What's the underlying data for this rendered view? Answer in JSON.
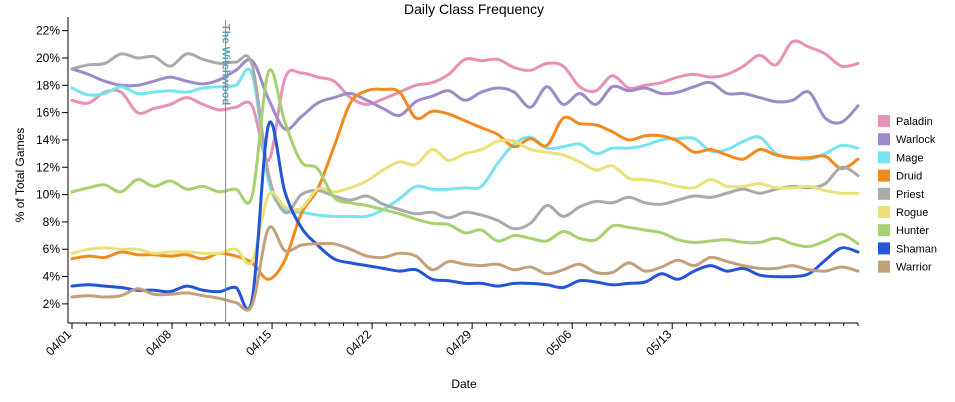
{
  "chart_data": {
    "type": "line",
    "title": "Daily Class Frequency",
    "xlabel": "Date",
    "ylabel": "% of Total Games",
    "ylim": [
      0.6,
      23.0
    ],
    "yticks": [
      2,
      4,
      6,
      8,
      10,
      12,
      14,
      16,
      18,
      20,
      22
    ],
    "ytick_labels": [
      "2%",
      "4%",
      "6%",
      "8%",
      "10%",
      "12%",
      "14%",
      "16%",
      "18%",
      "20%",
      "22%"
    ],
    "x_range": [
      0,
      55
    ],
    "xticks": [
      0,
      7,
      14,
      21,
      28,
      35,
      42
    ],
    "xtick_labels": [
      "04/01",
      "04/08",
      "04/15",
      "04/22",
      "04/29",
      "05/06",
      "05/13"
    ],
    "legend_position": "right",
    "annotation": {
      "label": "The Witchwood",
      "x": 10.75
    },
    "series": [
      {
        "name": "Paladin",
        "color": "#e990b8",
        "values": [
          16.9,
          16.7,
          17.5,
          17.5,
          16.0,
          16.3,
          16.6,
          17.1,
          16.6,
          16.2,
          16.4,
          16.5,
          12.5,
          18.5,
          18.9,
          18.6,
          18.3,
          17.1,
          16.6,
          17.0,
          17.5,
          18.0,
          18.2,
          18.8,
          19.9,
          19.8,
          19.9,
          19.3,
          19.1,
          19.6,
          19.4,
          17.9,
          17.6,
          18.7,
          17.8,
          18.0,
          18.2,
          18.6,
          18.8,
          18.6,
          18.8,
          19.4,
          20.2,
          19.5,
          21.2,
          20.8,
          20.3,
          19.4,
          19.6
        ]
      },
      {
        "name": "Warlock",
        "color": "#9d8bc8",
        "values": [
          19.2,
          18.8,
          18.3,
          18.0,
          18.0,
          18.3,
          18.6,
          18.3,
          18.1,
          18.4,
          19.1,
          19.8,
          17.0,
          14.8,
          15.7,
          16.7,
          17.1,
          17.4,
          16.9,
          16.3,
          15.8,
          16.8,
          17.2,
          17.6,
          16.9,
          17.5,
          17.8,
          17.5,
          16.4,
          17.9,
          16.6,
          17.4,
          16.6,
          17.9,
          17.6,
          17.8,
          17.4,
          17.5,
          17.9,
          18.2,
          17.4,
          17.4,
          17.1,
          16.8,
          16.9,
          17.5,
          15.6,
          15.3,
          16.5
        ]
      },
      {
        "name": "Mage",
        "color": "#76e4f0",
        "values": [
          17.8,
          17.3,
          17.4,
          17.9,
          17.4,
          17.5,
          17.6,
          17.5,
          17.8,
          17.9,
          18.0,
          18.8,
          11.0,
          8.9,
          8.7,
          8.5,
          8.4,
          8.4,
          8.4,
          8.9,
          9.7,
          10.6,
          10.4,
          10.4,
          10.5,
          10.6,
          12.3,
          13.7,
          14.2,
          13.4,
          13.5,
          13.7,
          13.0,
          13.4,
          13.4,
          13.6,
          14.0,
          14.1,
          14.1,
          13.2,
          13.3,
          13.9,
          14.2,
          13.0,
          12.7,
          12.6,
          13.0,
          13.6,
          13.4
        ]
      },
      {
        "name": "Druid",
        "color": "#f28a1f",
        "values": [
          5.3,
          5.5,
          5.4,
          5.8,
          5.6,
          5.6,
          5.5,
          5.6,
          5.3,
          5.7,
          5.5,
          5.0,
          3.8,
          5.2,
          8.6,
          10.4,
          13.5,
          16.7,
          17.6,
          17.7,
          17.5,
          15.6,
          16.1,
          15.9,
          15.4,
          14.9,
          14.4,
          13.5,
          14.1,
          13.6,
          15.6,
          15.2,
          15.1,
          14.6,
          14.0,
          14.3,
          14.3,
          13.9,
          13.1,
          13.3,
          12.9,
          12.6,
          13.3,
          12.9,
          12.7,
          12.7,
          12.8,
          11.9,
          12.6
        ]
      },
      {
        "name": "Priest",
        "color": "#aaaaaa",
        "values": [
          19.2,
          19.5,
          19.6,
          20.3,
          20.0,
          20.1,
          19.4,
          20.3,
          19.9,
          19.6,
          19.7,
          19.5,
          11.5,
          8.7,
          10.0,
          10.3,
          9.9,
          9.6,
          9.9,
          9.3,
          8.9,
          8.6,
          8.7,
          8.3,
          8.7,
          8.5,
          8.1,
          7.5,
          7.9,
          9.2,
          8.4,
          9.1,
          9.5,
          9.4,
          9.8,
          9.4,
          9.3,
          9.6,
          9.9,
          9.8,
          10.1,
          10.4,
          10.1,
          10.4,
          10.6,
          10.5,
          10.8,
          12.0,
          11.4
        ]
      },
      {
        "name": "Rogue",
        "color": "#ebe178",
        "values": [
          5.7,
          6.0,
          6.1,
          6.0,
          6.0,
          5.7,
          5.8,
          5.8,
          5.7,
          5.7,
          6.0,
          5.1,
          10.0,
          9.1,
          9.0,
          10.4,
          10.2,
          10.5,
          11.0,
          11.8,
          12.4,
          12.2,
          13.3,
          12.5,
          13.0,
          13.3,
          13.9,
          13.9,
          13.3,
          13.1,
          12.9,
          12.4,
          11.8,
          12.1,
          11.2,
          11.1,
          10.9,
          10.6,
          10.5,
          11.1,
          10.6,
          10.6,
          10.8,
          10.5,
          10.5,
          10.6,
          10.3,
          10.1,
          10.1
        ]
      },
      {
        "name": "Hunter",
        "color": "#a6d16f",
        "values": [
          10.2,
          10.5,
          10.7,
          10.2,
          11.1,
          10.6,
          11.0,
          10.4,
          10.6,
          10.2,
          10.4,
          9.9,
          19.0,
          15.3,
          12.4,
          11.9,
          9.8,
          9.4,
          9.2,
          8.9,
          8.6,
          8.2,
          7.9,
          7.8,
          7.2,
          7.4,
          6.6,
          7.0,
          6.8,
          6.6,
          7.3,
          6.8,
          6.7,
          7.7,
          7.6,
          7.4,
          7.2,
          6.7,
          6.5,
          6.6,
          6.7,
          6.5,
          6.5,
          6.8,
          6.4,
          6.2,
          6.6,
          7.1,
          6.4
        ]
      },
      {
        "name": "Shaman",
        "color": "#2355d6",
        "values": [
          3.3,
          3.4,
          3.3,
          3.2,
          3.0,
          3.0,
          2.9,
          3.3,
          3.0,
          2.9,
          3.2,
          2.3,
          15.1,
          10.2,
          7.6,
          6.3,
          5.3,
          5.0,
          4.8,
          4.6,
          4.4,
          4.5,
          3.8,
          3.7,
          3.5,
          3.5,
          3.3,
          3.5,
          3.5,
          3.4,
          3.2,
          3.7,
          3.6,
          3.4,
          3.5,
          3.6,
          4.2,
          3.8,
          4.4,
          4.8,
          4.4,
          4.6,
          4.1,
          4.0,
          4.0,
          4.2,
          5.2,
          6.1,
          5.8
        ]
      },
      {
        "name": "Warrior",
        "color": "#c2a07c",
        "values": [
          2.5,
          2.6,
          2.5,
          2.6,
          3.1,
          2.7,
          2.7,
          2.8,
          2.6,
          2.4,
          2.1,
          1.9,
          7.5,
          5.9,
          6.3,
          6.4,
          6.4,
          6.0,
          5.5,
          5.4,
          5.7,
          5.5,
          4.5,
          5.1,
          4.9,
          4.8,
          4.9,
          4.5,
          4.7,
          4.2,
          4.5,
          4.9,
          4.3,
          4.3,
          5.0,
          4.4,
          4.7,
          5.2,
          4.8,
          5.4,
          5.1,
          4.8,
          4.6,
          4.6,
          4.8,
          4.5,
          4.4,
          4.7,
          4.4
        ]
      }
    ]
  }
}
